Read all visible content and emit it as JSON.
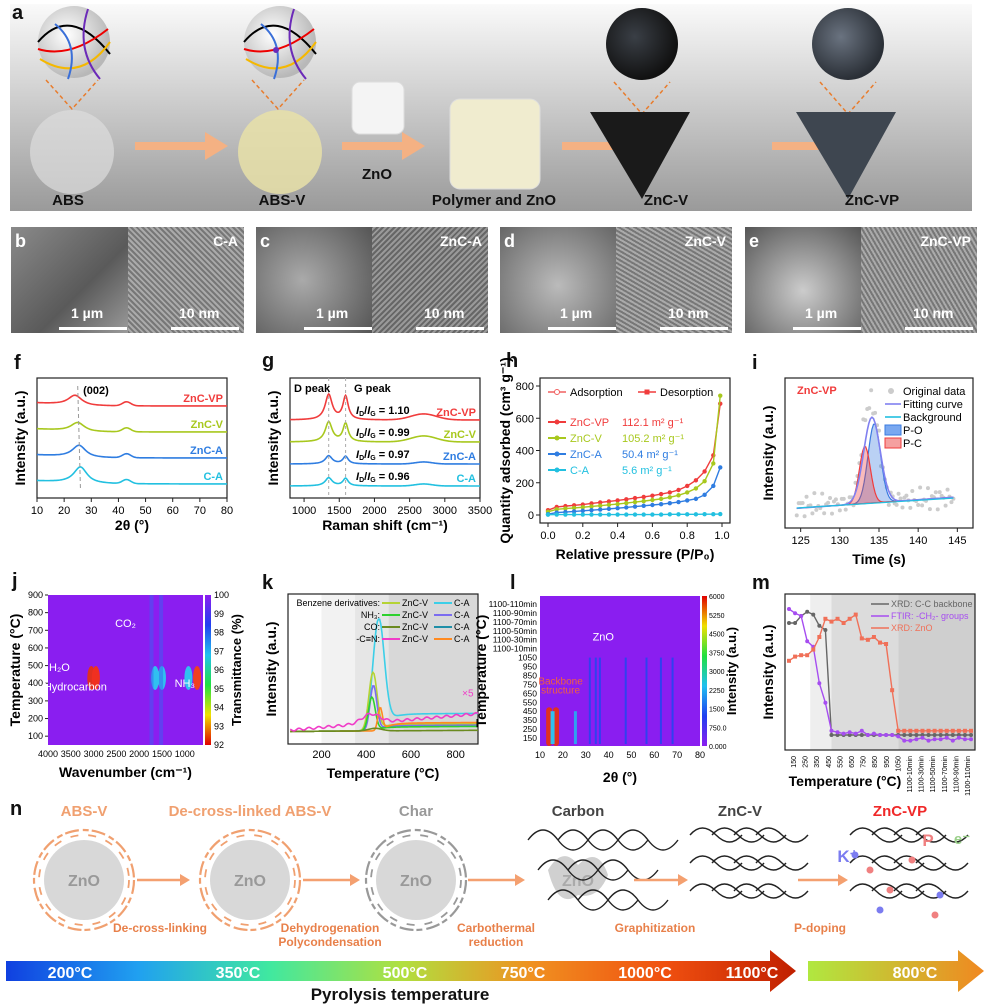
{
  "panel_labels": {
    "a": "a",
    "b": "b",
    "c": "c",
    "d": "d",
    "e": "e",
    "f": "f",
    "g": "g",
    "h": "h",
    "i": "i",
    "j": "j",
    "k": "k",
    "l": "l",
    "m": "m",
    "n": "n"
  },
  "panel_a": {
    "stages": [
      "ABS",
      "ABS-V",
      "Polymer and ZnO",
      "ZnC-V",
      "ZnC-VP"
    ],
    "zno_label": "ZnO",
    "arrow_color": "#f4b183"
  },
  "micrographs": [
    {
      "label": "b",
      "sample": "C-A",
      "sem_scale": "1 µm",
      "tem_scale": "10 nm"
    },
    {
      "label": "c",
      "sample": "ZnC-A",
      "sem_scale": "1 µm",
      "tem_scale": "10 nm"
    },
    {
      "label": "d",
      "sample": "ZnC-V",
      "sem_scale": "1 µm",
      "tem_scale": "10 nm"
    },
    {
      "label": "e",
      "sample": "ZnC-VP",
      "sem_scale": "1 µm",
      "tem_scale": "10 nm"
    }
  ],
  "chart_data": [
    {
      "id": "f",
      "type": "line",
      "title": "",
      "xlabel": "2θ (°)",
      "ylabel": "Intensity (a.u.)",
      "xlim": [
        10,
        80
      ],
      "xticks": [
        10,
        20,
        30,
        40,
        50,
        60,
        70,
        80
      ],
      "annotation": "(002)",
      "series": [
        {
          "name": "ZnC-VP",
          "color": "#f03c3c",
          "peak": 24,
          "offset": 3,
          "amp": 0.45
        },
        {
          "name": "ZnC-V",
          "color": "#a8c81e",
          "peak": 25,
          "offset": 2,
          "amp": 0.4
        },
        {
          "name": "ZnC-A",
          "color": "#2f7de1",
          "peak": 25.5,
          "offset": 1,
          "amp": 0.55
        },
        {
          "name": "C-A",
          "color": "#22c0e0",
          "peak": 26,
          "offset": 0,
          "amp": 0.75
        }
      ]
    },
    {
      "id": "g",
      "type": "line",
      "xlabel": "Raman shift (cm-1)",
      "ylabel": "Intensity (a.u.)",
      "xlim": [
        800,
        3500
      ],
      "xticks": [
        1000,
        1500,
        2000,
        2500,
        3000,
        3500
      ],
      "annotations": [
        "D peak",
        "G peak"
      ],
      "series": [
        {
          "name": "ZnC-VP",
          "color": "#f03c3c",
          "ratio": "1.10",
          "offset": 3,
          "amp": 1.4
        },
        {
          "name": "ZnC-V",
          "color": "#a8c81e",
          "ratio": "0.99",
          "offset": 2,
          "amp": 1.1
        },
        {
          "name": "ZnC-A",
          "color": "#2f7de1",
          "ratio": "0.97",
          "offset": 1,
          "amp": 0.45
        },
        {
          "name": "C-A",
          "color": "#22c0e0",
          "ratio": "0.96",
          "offset": 0,
          "amp": 0.45
        }
      ]
    },
    {
      "id": "h",
      "type": "scatter",
      "xlabel": "Relative pressure (P/P0)",
      "ylabel": "Quantity adsorbed (cm3 g-1)",
      "xlim": [
        0,
        1
      ],
      "ylim": [
        0,
        800
      ],
      "xticks": [
        0,
        0.2,
        0.4,
        0.6,
        0.8,
        1.0
      ],
      "yticks": [
        0,
        200,
        400,
        600,
        800
      ],
      "legend": [
        "Adsorption",
        "Desorption"
      ],
      "x": [
        0,
        0.05,
        0.1,
        0.15,
        0.2,
        0.25,
        0.3,
        0.35,
        0.4,
        0.45,
        0.5,
        0.55,
        0.6,
        0.65,
        0.7,
        0.75,
        0.8,
        0.85,
        0.9,
        0.95,
        0.99
      ],
      "series": [
        {
          "name": "ZnC-VP",
          "surface_area": "112.1 m² g⁻¹",
          "color": "#f03c3c",
          "values": [
            30,
            50,
            55,
            60,
            65,
            72,
            78,
            84,
            90,
            97,
            105,
            112,
            120,
            130,
            140,
            155,
            180,
            215,
            270,
            370,
            690
          ]
        },
        {
          "name": "ZnC-V",
          "surface_area": "105.2 m² g⁻¹",
          "color": "#a8c81e",
          "values": [
            20,
            35,
            40,
            44,
            48,
            53,
            58,
            63,
            68,
            74,
            80,
            86,
            93,
            100,
            110,
            122,
            140,
            165,
            210,
            320,
            740
          ]
        },
        {
          "name": "ZnC-A",
          "surface_area": "50.4 m² g⁻¹",
          "color": "#2f7de1",
          "values": [
            5,
            15,
            18,
            22,
            26,
            30,
            34,
            38,
            42,
            47,
            52,
            57,
            62,
            67,
            73,
            80,
            90,
            100,
            125,
            180,
            295
          ]
        },
        {
          "name": "C-A",
          "surface_area": "5.6 m² g⁻¹",
          "color": "#22c0e0",
          "values": [
            2,
            3,
            3,
            3,
            3,
            3,
            3,
            3,
            3,
            3,
            3,
            3,
            3,
            3,
            4,
            4,
            4,
            4,
            5,
            5,
            6
          ]
        }
      ]
    },
    {
      "id": "i",
      "type": "area",
      "xlabel": "Time (s)",
      "ylabel": "Intensity (a.u.)",
      "xlim": [
        123,
        147
      ],
      "xticks": [
        125,
        130,
        135,
        140,
        145
      ],
      "sample": "ZnC-VP",
      "legend": [
        "Original data",
        "Fitting curve",
        "Background",
        "P-O",
        "P-C"
      ],
      "peaks": [
        {
          "name": "P-O",
          "center": 134.4,
          "height": 0.72,
          "color": "#3a7be0"
        },
        {
          "name": "P-C",
          "center": 133.2,
          "height": 0.52,
          "color": "#f03c3c"
        }
      ]
    },
    {
      "id": "j",
      "type": "heatmap",
      "xlabel": "Wavenumber (cm-1)",
      "ylabel": "Temperature (°C)",
      "xlim": [
        4000,
        600
      ],
      "ylim": [
        50,
        900
      ],
      "xticks": [
        4000,
        3500,
        3000,
        2500,
        2000,
        1500,
        1000
      ],
      "yticks": [
        100,
        200,
        300,
        400,
        500,
        600,
        700,
        800,
        900
      ],
      "colorbar": {
        "label": "Transmittance (%)",
        "ticks": [
          92,
          93,
          94,
          95,
          96,
          97,
          98,
          99,
          100
        ]
      },
      "annotations": [
        "H2O",
        "CO2",
        "Hydrocarbon",
        "NH3"
      ]
    },
    {
      "id": "k",
      "type": "line",
      "xlabel": "Temperature (°C)",
      "ylabel": "Intensity (a.u.)",
      "xlim": [
        50,
        900
      ],
      "xticks": [
        200,
        400,
        600,
        800
      ],
      "annotation": "×5",
      "legend_rows": [
        {
          "label": "Benzene derivatives:",
          "zncv": "ZnC-V",
          "zncv_color": "#b5d334",
          "ca": "C-A",
          "ca_color": "#3ccfe8"
        },
        {
          "label": "NH3:",
          "zncv": "ZnC-V",
          "zncv_color": "#2ed12e",
          "ca": "C-A",
          "ca_color": "#7b6cf0"
        },
        {
          "label": "CO:",
          "zncv": "ZnC-V",
          "zncv_color": "#6b8a20",
          "ca": "C-A",
          "ca_color": "#1f8fa8"
        },
        {
          "label": "-C≡N:",
          "zncv": "ZnC-V",
          "zncv_color": "#f03cc8",
          "ca": "C-A",
          "ca_color": "#ff8a20"
        }
      ]
    },
    {
      "id": "l",
      "type": "heatmap",
      "xlabel": "2θ (°)",
      "ylabel": "Temperature (°C)",
      "xlim": [
        10,
        80
      ],
      "xticks": [
        10,
        20,
        30,
        40,
        50,
        60,
        70,
        80
      ],
      "yticks": [
        "150",
        "250",
        "350",
        "450",
        "550",
        "650",
        "750",
        "850",
        "950",
        "1050",
        "1100-10min",
        "1100-30min",
        "1100-50min",
        "1100-70min",
        "1100-90min",
        "1100-110min"
      ],
      "colorbar": {
        "label": "Intensity (a.u.)",
        "ticks": [
          "0.000",
          "750.0",
          "1500",
          "2250",
          "3000",
          "3750",
          "4500",
          "5250",
          "6000"
        ]
      },
      "annotations": [
        "ZnO",
        "Backbone structure"
      ]
    },
    {
      "id": "m",
      "type": "line",
      "xlabel": "Temperature (°C)",
      "ylabel": "Intensity (a.u.)",
      "xticks": [
        "150",
        "250",
        "350",
        "450",
        "550",
        "650",
        "750",
        "850",
        "950",
        "1050",
        "1100-10min",
        "1100-30min",
        "1100-50min",
        "1100-70min",
        "1100-90min",
        "1100-110min"
      ],
      "series": [
        {
          "name": "XRD: C-C backbone",
          "color": "#666666",
          "values": [
            0.85,
            0.85,
            0.9,
            0.93,
            0.91,
            0.83,
            0.8,
            0.05,
            0.05,
            0.05,
            0.05,
            0.05,
            0.05,
            0.05,
            0.05,
            0.05,
            0.05,
            0.05,
            0.05,
            0.05,
            0.05,
            0.05,
            0.05,
            0.05,
            0.05,
            0.05,
            0.05,
            0.05,
            0.05,
            0.05,
            0.05
          ]
        },
        {
          "name": "FTIR: -CH2- groups",
          "color": "#a64df0",
          "values": [
            0.95,
            0.92,
            0.9,
            0.72,
            0.68,
            0.42,
            0.28,
            0.08,
            0.07,
            0.06,
            0.07,
            0.06,
            0.08,
            0.05,
            0.06,
            0.05,
            0.05,
            0.05,
            0.04,
            0.01,
            0.01,
            0.02,
            0.03,
            0.01,
            0.02,
            0.02,
            0.03,
            0.01,
            0.03,
            0.02,
            0.02
          ]
        },
        {
          "name": "XRD: ZnO",
          "color": "#f07058",
          "values": [
            0.58,
            0.61,
            0.62,
            0.62,
            0.66,
            0.75,
            0.88,
            0.86,
            0.88,
            0.85,
            0.88,
            0.91,
            0.74,
            0.73,
            0.75,
            0.71,
            0.7,
            0.37,
            0.08,
            0.08,
            0.08,
            0.08,
            0.08,
            0.08,
            0.08,
            0.08,
            0.08,
            0.08,
            0.08,
            0.08,
            0.08
          ]
        }
      ]
    }
  ],
  "panel_n": {
    "stages": [
      {
        "title": "ABS-V",
        "color": "#f0a070",
        "core": "ZnO"
      },
      {
        "title": "De-cross-linked ABS-V",
        "color": "#f0a070",
        "core": "ZnO"
      },
      {
        "title": "Char",
        "color": "#999999",
        "core": "ZnO"
      },
      {
        "title": "Carbon",
        "color": "#444444",
        "core": "ZnO"
      },
      {
        "title": "ZnC-V",
        "color": "#444444"
      },
      {
        "title": "ZnC-VP",
        "color": "#f02828"
      }
    ],
    "processes": [
      "De-cross-linking",
      "Dehydrogenation\nPolycondensation",
      "Carbothermal\nreduction",
      "Graphitization",
      "P-doping"
    ],
    "ions": {
      "k": "K⁺",
      "p": "P",
      "e": "e⁻"
    },
    "temps": [
      "200°C",
      "350°C",
      "500°C",
      "750°C",
      "1000°C",
      "1100°C"
    ],
    "doping_temp": "800°C",
    "axis_label": "Pyrolysis temperature"
  }
}
